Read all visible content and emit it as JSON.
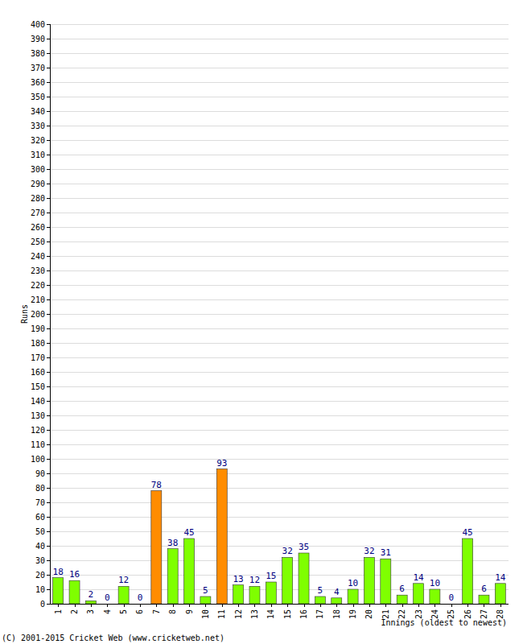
{
  "chart_data": {
    "type": "bar",
    "y_label": "Runs",
    "x_label": "Innings (oldest to newest)",
    "annotations": [
      "(C) 2001-2015 Cricket Web (www.cricketweb.net)"
    ],
    "categories": [
      "1",
      "2",
      "3",
      "4",
      "5",
      "6",
      "7",
      "8",
      "9",
      "10",
      "11",
      "12",
      "13",
      "14",
      "15",
      "16",
      "17",
      "18",
      "19",
      "20",
      "21",
      "22",
      "23",
      "24",
      "25",
      "26",
      "27",
      "28"
    ],
    "values": [
      18,
      16,
      2,
      0,
      12,
      0,
      78,
      38,
      45,
      5,
      93,
      13,
      12,
      15,
      32,
      35,
      5,
      4,
      10,
      32,
      31,
      6,
      14,
      10,
      0,
      45,
      6,
      14
    ],
    "colors": [
      "#7fff00",
      "#7fff00",
      "#7fff00",
      "#7fff00",
      "#7fff00",
      "#7fff00",
      "#ff8c00",
      "#7fff00",
      "#7fff00",
      "#7fff00",
      "#ff8c00",
      "#7fff00",
      "#7fff00",
      "#7fff00",
      "#7fff00",
      "#7fff00",
      "#7fff00",
      "#7fff00",
      "#7fff00",
      "#7fff00",
      "#7fff00",
      "#7fff00",
      "#7fff00",
      "#7fff00",
      "#7fff00",
      "#7fff00",
      "#7fff00",
      "#7fff00"
    ],
    "ylim": [
      0,
      400
    ],
    "yticks": [
      0,
      10,
      20,
      30,
      40,
      50,
      60,
      70,
      80,
      90,
      100,
      110,
      120,
      130,
      140,
      150,
      160,
      170,
      180,
      190,
      200,
      210,
      220,
      230,
      240,
      250,
      260,
      270,
      280,
      290,
      300,
      310,
      320,
      330,
      340,
      350,
      360,
      370,
      380,
      390,
      400
    ],
    "grid": true,
    "data_labels": true
  }
}
